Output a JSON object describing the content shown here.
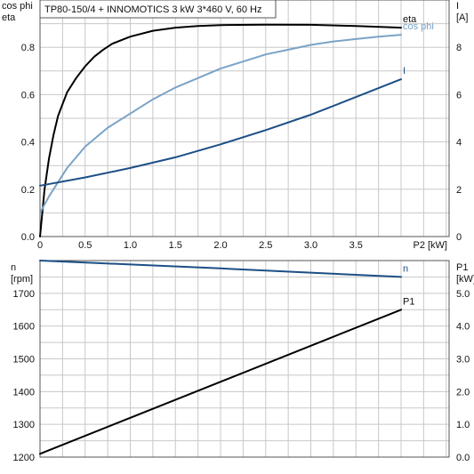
{
  "title": "TP80-150/4 + INNOMOTICS   3 kW   3*460 V, 60 Hz",
  "colors": {
    "eta": "#000000",
    "cos_phi": "#7ba3c6",
    "I": "#1c4f86",
    "n": "#1c4f86",
    "P1": "#000000"
  },
  "chart_data": [
    {
      "type": "line",
      "x_label": "P2 [kW]",
      "xlim": [
        0,
        4.0
      ],
      "x_ticks": [
        "0",
        "0.5",
        "1.0",
        "1.5",
        "2.0",
        "2.5",
        "3.0",
        "3.5"
      ],
      "y_left_label": [
        "cos phi",
        "eta"
      ],
      "ylim_left": [
        0,
        1.0
      ],
      "y_left_ticks": [
        "0.0",
        "0.2",
        "0.4",
        "0.6",
        "0.8"
      ],
      "y_right_label": [
        "I",
        "[A]"
      ],
      "ylim_right": [
        0,
        10
      ],
      "y_right_ticks": [
        "0",
        "2",
        "4",
        "6",
        "8"
      ],
      "grid": true,
      "series": [
        {
          "name": "eta",
          "axis": "left",
          "x": [
            0,
            0.05,
            0.1,
            0.15,
            0.2,
            0.3,
            0.4,
            0.5,
            0.6,
            0.7,
            0.8,
            1.0,
            1.25,
            1.5,
            1.75,
            2.0,
            2.5,
            3.0,
            3.5,
            4.0
          ],
          "y": [
            0,
            0.2,
            0.33,
            0.43,
            0.51,
            0.61,
            0.67,
            0.72,
            0.76,
            0.79,
            0.815,
            0.845,
            0.87,
            0.883,
            0.89,
            0.894,
            0.896,
            0.895,
            0.89,
            0.883
          ]
        },
        {
          "name": "cos phi",
          "axis": "left",
          "x": [
            0,
            0.1,
            0.2,
            0.3,
            0.5,
            0.75,
            1.0,
            1.25,
            1.5,
            1.75,
            2.0,
            2.25,
            2.5,
            2.75,
            3.0,
            3.25,
            3.5,
            3.75,
            4.0
          ],
          "y": [
            0.1,
            0.17,
            0.23,
            0.29,
            0.38,
            0.46,
            0.52,
            0.58,
            0.63,
            0.67,
            0.71,
            0.74,
            0.77,
            0.79,
            0.81,
            0.825,
            0.835,
            0.845,
            0.853
          ]
        },
        {
          "name": "I",
          "axis": "right",
          "x": [
            0,
            0.5,
            1.0,
            1.5,
            2.0,
            2.5,
            3.0,
            3.5,
            4.0
          ],
          "y": [
            2.15,
            2.5,
            2.9,
            3.35,
            3.9,
            4.5,
            5.15,
            5.9,
            6.65
          ]
        }
      ]
    },
    {
      "type": "line",
      "xlim": [
        0,
        4.0
      ],
      "y_left_label": [
        "n",
        "[rpm]"
      ],
      "ylim_left": [
        1200,
        1800
      ],
      "y_left_ticks": [
        "1200",
        "1300",
        "1400",
        "1500",
        "1600",
        "1700"
      ],
      "y_right_label": [
        "P1",
        "[kW]"
      ],
      "ylim_right": [
        0,
        6.0
      ],
      "y_right_ticks": [
        "0.0",
        "1.0",
        "2.0",
        "3.0",
        "4.0",
        "5.0"
      ],
      "grid": true,
      "series": [
        {
          "name": "n",
          "axis": "left",
          "x": [
            0,
            1.0,
            2.0,
            3.0,
            4.0
          ],
          "y": [
            1800,
            1788,
            1776,
            1763,
            1750
          ]
        },
        {
          "name": "P1",
          "axis": "right",
          "x": [
            0,
            1.0,
            2.0,
            3.0,
            4.0
          ],
          "y": [
            0.1,
            1.2,
            2.3,
            3.4,
            4.5
          ]
        }
      ]
    }
  ]
}
